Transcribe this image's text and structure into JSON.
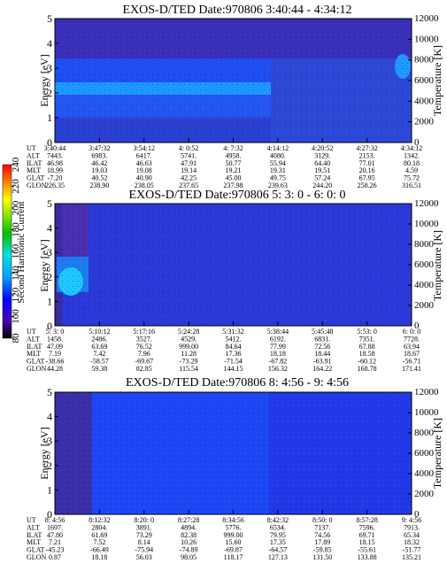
{
  "chart_data": [
    {
      "type": "heatmap",
      "title": "EXOS-D/TED   Date:970806  3:40:44 - 4:34:12",
      "ylabel": "Energy [eV]",
      "ylabel_right": "Temperature [K]",
      "ylim": [
        0,
        5
      ],
      "yticks": [
        "0",
        "1",
        "2",
        "3",
        "4",
        "5"
      ],
      "ylim_right": [
        0,
        12000
      ],
      "yticks_right": [
        "0",
        "2000",
        "4000",
        "6000",
        "8000",
        "10000",
        "12000"
      ],
      "ephemeris": [
        {
          "name": "UT",
          "values": [
            "3:40:44",
            "3:47:32",
            "3:54:12",
            "4: 0:52",
            "4: 7:32",
            "4:14:12",
            "4:20:52",
            "4:27:32",
            "4:34:12"
          ]
        },
        {
          "name": "ALT",
          "values": [
            "7443.",
            "6983.",
            "6417.",
            "5741.",
            "4958.",
            "4080.",
            "3129.",
            "2153.",
            "1342."
          ]
        },
        {
          "name": "ILAT",
          "values": [
            "46.98",
            "46.42",
            "46.63",
            "47.91",
            "50.77",
            "55.94",
            "64.40",
            "77.01",
            "80.18"
          ]
        },
        {
          "name": "MLT",
          "values": [
            "18.99",
            "19.03",
            "19.08",
            "19.14",
            "19.21",
            "19.31",
            "19.51",
            "20.16",
            "4.59"
          ]
        },
        {
          "name": "GLAT",
          "values": [
            "-7.20",
            "40.52",
            "40.90",
            "42.25",
            "45.00",
            "49.75",
            "57.24",
            "67.95",
            "75.72"
          ]
        },
        {
          "name": "GLON",
          "values": [
            "226.35",
            "238.90",
            "238.05",
            "237.65",
            "237.98",
            "239.63",
            "244.20",
            "258.26",
            "316.51"
          ]
        }
      ]
    },
    {
      "type": "heatmap",
      "title": "EXOS-D/TED   Date:970806  5: 3: 0 - 6: 0: 0",
      "ylabel": "Energy [eV]",
      "ylabel_right": "Temperature [K]",
      "ylim": [
        0,
        5
      ],
      "yticks": [
        "0",
        "1",
        "2",
        "3",
        "4",
        "5"
      ],
      "ylim_right": [
        0,
        12000
      ],
      "yticks_right": [
        "0",
        "2000",
        "4000",
        "6000",
        "8000",
        "10000",
        "12000"
      ],
      "colorbar": {
        "label": "Second Harmonic Current",
        "range": [
          80,
          240
        ],
        "ticks": [
          "80",
          "100",
          "120",
          "140",
          "160",
          "180",
          "200",
          "220",
          "240"
        ],
        "stops": [
          "#000000",
          "#5000b0",
          "#0000ff",
          "#00a0ff",
          "#00e0e0",
          "#00c000",
          "#80e000",
          "#ffff00",
          "#ff8000",
          "#ff0000"
        ]
      },
      "ephemeris": [
        {
          "name": "UT",
          "values": [
            "5: 3: 0",
            "5:10:12",
            "5:17:16",
            "5:24:28",
            "5:31:32",
            "5:38:44",
            "5:45:48",
            "5:53: 0",
            "6: 0: 0"
          ]
        },
        {
          "name": "ALT",
          "values": [
            "1458.",
            "2486.",
            "3527.",
            "4529.",
            "5412.",
            "6192.",
            "6831.",
            "7351.",
            "7728."
          ]
        },
        {
          "name": "ILAT",
          "values": [
            "47.09",
            "63.69",
            "76.52",
            "999.00",
            "84.64",
            "77.99",
            "72.56",
            "67.88",
            "63.94"
          ]
        },
        {
          "name": "MLT",
          "values": [
            "7.19",
            "7.42",
            "7.96",
            "11.28",
            "17.36",
            "18.18",
            "18.44",
            "18.58",
            "18.67"
          ]
        },
        {
          "name": "GLAT",
          "values": [
            "-38.66",
            "-58.57",
            "-69.67",
            "-73.29",
            "-71.54",
            "-67.82",
            "-63.91",
            "-60.12",
            "-56.71"
          ]
        },
        {
          "name": "GLON",
          "values": [
            "44.28",
            "59.38",
            "82.85",
            "115.54",
            "144.15",
            "156.32",
            "164.22",
            "168.78",
            "171.41"
          ]
        }
      ]
    },
    {
      "type": "heatmap",
      "title": "EXOS-D/TED   Date:970806  8: 4:56 - 9: 4:56",
      "ylabel": "Energy [eV]",
      "ylabel_right": "Temperature [K]",
      "ylim": [
        0,
        5
      ],
      "yticks": [
        "0",
        "1",
        "2",
        "3",
        "4",
        "5"
      ],
      "ylim_right": [
        0,
        12000
      ],
      "yticks_right": [
        "0",
        "2000",
        "4000",
        "6000",
        "8000",
        "10000",
        "12000"
      ],
      "ephemeris": [
        {
          "name": "UT",
          "values": [
            "8: 4:56",
            "8:12:32",
            "8:20: 0",
            "8:27:28",
            "8:34:56",
            "8:42:32",
            "8:50: 0",
            "8:57:28",
            "9: 4:56"
          ]
        },
        {
          "name": "ALT",
          "values": [
            "1697.",
            "2804.",
            "3891.",
            "4894.",
            "5776.",
            "6534.",
            "7137.",
            "7596.",
            "7913."
          ]
        },
        {
          "name": "ILAT",
          "values": [
            "47.80",
            "61.69",
            "73.29",
            "82.38",
            "999.00",
            "79.95",
            "74.56",
            "69.71",
            "65.34"
          ]
        },
        {
          "name": "MLT",
          "values": [
            "7.21",
            "7.52",
            "8.14",
            "10.26",
            "15.60",
            "17.35",
            "17.89",
            "18.15",
            "18.32"
          ]
        },
        {
          "name": "GLAT",
          "values": [
            "-45.23",
            "-66.49",
            "-75.94",
            "-74.89",
            "-69.87",
            "-64.57",
            "-59.85",
            "-55.61",
            "-51.77"
          ]
        },
        {
          "name": "GLON",
          "values": [
            "0.87",
            "18.18",
            "56.03",
            "98.05",
            "118.17",
            "127.13",
            "131.50",
            "133.88",
            "135.21"
          ]
        }
      ]
    }
  ]
}
